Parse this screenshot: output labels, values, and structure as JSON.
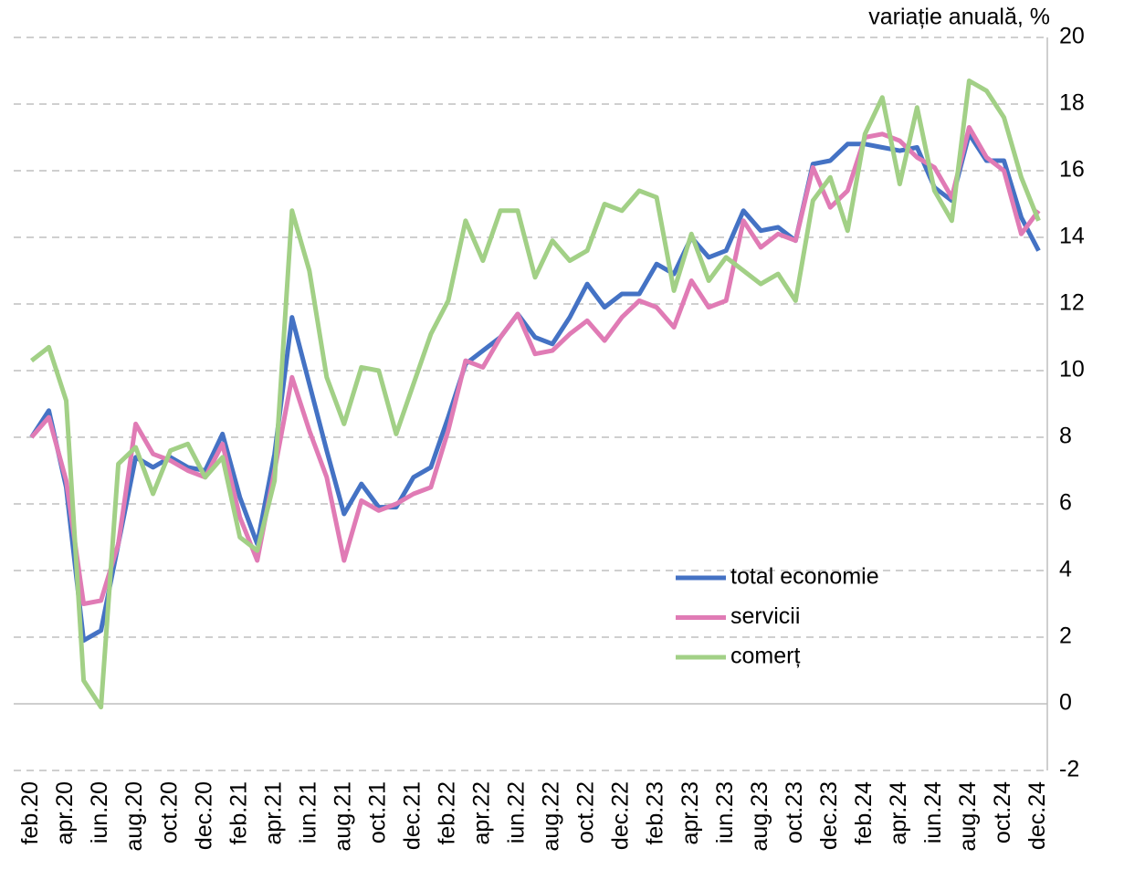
{
  "chart_data": {
    "type": "line",
    "y_axis_label": "variație anuală, %",
    "categories": [
      "feb.20",
      null,
      "apr.20",
      null,
      "iun.20",
      null,
      "aug.20",
      null,
      "oct.20",
      null,
      "dec.20",
      null,
      "feb.21",
      null,
      "apr.21",
      null,
      "iun.21",
      null,
      "aug.21",
      null,
      "oct.21",
      null,
      "dec.21",
      null,
      "feb.22",
      null,
      "apr.22",
      null,
      "iun.22",
      null,
      "aug.22",
      null,
      "oct.22",
      null,
      "dec.22",
      null,
      "feb.23",
      null,
      "apr.23",
      null,
      "iun.23",
      null,
      "aug.23",
      null,
      "oct.23",
      null,
      "dec.23",
      null,
      "feb.24",
      null,
      "apr.24",
      null,
      "iun.24",
      null,
      "aug.24",
      null,
      "oct.24",
      null,
      "dec.24"
    ],
    "series": [
      {
        "name": "total economie",
        "color": "#4472c4",
        "values": [
          8.0,
          8.8,
          6.5,
          1.9,
          2.2,
          4.8,
          7.4,
          7.1,
          7.4,
          7.1,
          7.0,
          8.1,
          6.2,
          4.8,
          7.5,
          11.6,
          9.6,
          7.6,
          5.7,
          6.6,
          5.9,
          5.9,
          6.8,
          7.1,
          8.6,
          10.2,
          10.6,
          11.0,
          11.7,
          11.0,
          10.8,
          11.6,
          12.6,
          11.9,
          12.3,
          12.3,
          13.2,
          12.9,
          14.0,
          13.4,
          13.6,
          14.8,
          14.2,
          14.3,
          13.9,
          16.2,
          16.3,
          16.8,
          16.8,
          16.7,
          16.6,
          16.7,
          15.5,
          15.1,
          17.1,
          16.3,
          16.3,
          14.6,
          13.6
        ]
      },
      {
        "name": "servicii",
        "color": "#e07bb5",
        "values": [
          8.0,
          8.6,
          6.7,
          3.0,
          3.1,
          4.8,
          8.4,
          7.5,
          7.3,
          7.0,
          6.8,
          7.8,
          5.6,
          4.3,
          7.0,
          9.8,
          8.2,
          6.8,
          4.3,
          6.1,
          5.8,
          6.0,
          6.3,
          6.5,
          8.2,
          10.3,
          10.1,
          11.0,
          11.7,
          10.5,
          10.6,
          11.1,
          11.5,
          10.9,
          11.6,
          12.1,
          11.9,
          11.3,
          12.7,
          11.9,
          12.1,
          14.5,
          13.7,
          14.1,
          13.9,
          16.1,
          14.9,
          15.4,
          17.0,
          17.1,
          16.9,
          16.4,
          16.1,
          15.2,
          17.3,
          16.4,
          16.0,
          14.1,
          14.8
        ]
      },
      {
        "name": "comerț",
        "color": "#a2d086",
        "values": [
          10.3,
          10.7,
          9.1,
          0.7,
          -0.1,
          7.2,
          7.7,
          6.3,
          7.6,
          7.8,
          6.8,
          7.4,
          5.0,
          4.6,
          6.7,
          14.8,
          13.0,
          9.8,
          8.4,
          10.1,
          10.0,
          8.1,
          9.6,
          11.1,
          12.1,
          14.5,
          13.3,
          14.8,
          14.8,
          12.8,
          13.9,
          13.3,
          13.6,
          15.0,
          14.8,
          15.4,
          15.2,
          12.4,
          14.1,
          12.7,
          13.4,
          13.0,
          12.6,
          12.9,
          12.1,
          15.1,
          15.8,
          14.2,
          17.1,
          18.2,
          15.6,
          17.9,
          15.4,
          14.5,
          18.7,
          18.4,
          17.6,
          15.8,
          14.5
        ]
      }
    ],
    "ylim": [
      -2,
      20
    ],
    "yticks": [
      -2,
      0,
      2,
      4,
      6,
      8,
      10,
      12,
      14,
      16,
      18,
      20
    ],
    "grid": true,
    "legend": "bottom-right"
  }
}
